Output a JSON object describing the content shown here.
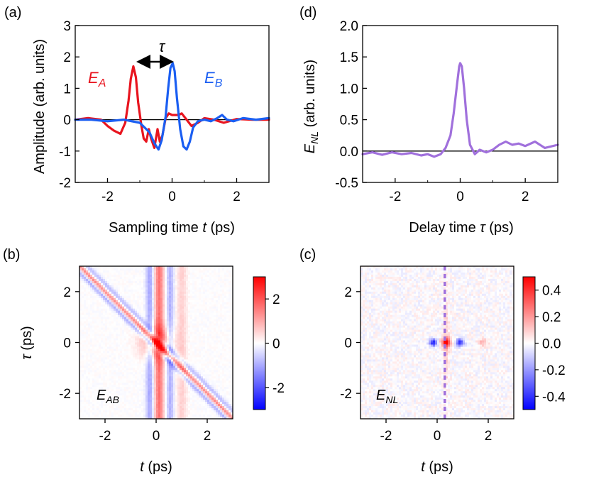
{
  "chart_data": [
    {
      "panel": "(a)",
      "type": "line",
      "xlabel_prefix": "Sampling time ",
      "xlabel_var": "t",
      "xlabel_suffix": " (ps)",
      "ylabel": "Amplitude (arb. units)",
      "xlim": [
        -3,
        3
      ],
      "ylim": [
        -2,
        3
      ],
      "xticks": [
        -2,
        0,
        2
      ],
      "yticks": [
        -2,
        -1,
        0,
        1,
        2,
        3
      ],
      "zero_line": true,
      "annotation": "τ",
      "series": [
        {
          "name": "E",
          "subscript": "A",
          "color": "#e8141e",
          "x": [
            -3.0,
            -2.6,
            -2.2,
            -2.0,
            -1.8,
            -1.6,
            -1.45,
            -1.35,
            -1.28,
            -1.2,
            -1.12,
            -1.05,
            -0.95,
            -0.88,
            -0.8,
            -0.72,
            -0.65,
            -0.55,
            -0.45,
            -0.38,
            -0.3,
            -0.2,
            -0.1,
            0.0,
            0.1,
            0.2,
            0.3,
            0.45,
            0.6,
            0.8,
            1.0,
            1.3,
            1.6,
            2.0,
            2.5,
            3.0
          ],
          "y": [
            0.0,
            0.05,
            0.0,
            -0.2,
            -0.35,
            -0.45,
            -0.1,
            0.6,
            1.3,
            1.7,
            1.35,
            0.55,
            -0.2,
            -0.6,
            -0.7,
            -0.3,
            -0.6,
            -0.9,
            -0.3,
            -0.7,
            -0.5,
            0.05,
            0.2,
            0.15,
            0.15,
            0.15,
            0.2,
            0.0,
            -0.2,
            -0.1,
            0.05,
            0.0,
            -0.1,
            0.02,
            0.0,
            0.0
          ]
        },
        {
          "name": "E",
          "subscript": "B",
          "color": "#1a5ef2",
          "x": [
            -3.0,
            -2.5,
            -2.0,
            -1.5,
            -1.0,
            -0.7,
            -0.55,
            -0.42,
            -0.32,
            -0.2,
            -0.12,
            -0.05,
            0.02,
            0.08,
            0.15,
            0.25,
            0.35,
            0.45,
            0.55,
            0.65,
            0.8,
            1.0,
            1.2,
            1.4,
            1.55,
            1.7,
            1.9,
            2.2,
            2.6,
            3.0
          ],
          "y": [
            0.0,
            0.0,
            -0.05,
            0.0,
            -0.1,
            -0.4,
            -0.75,
            -0.95,
            -0.65,
            0.1,
            1.0,
            1.65,
            1.8,
            1.55,
            0.7,
            -0.3,
            -0.85,
            -0.95,
            -0.7,
            -0.25,
            -0.05,
            0.0,
            -0.05,
            0.05,
            0.15,
            0.0,
            -0.05,
            0.05,
            0.0,
            0.05
          ]
        }
      ]
    },
    {
      "panel": "(d)",
      "type": "line",
      "xlabel_prefix": "Delay time ",
      "xlabel_var": "τ",
      "xlabel_suffix": " (ps)",
      "ylabel_var": "E",
      "ylabel_sub": "NL",
      "ylabel_suffix": " (arb. units)",
      "xlim": [
        -3,
        3
      ],
      "ylim": [
        -0.5,
        2.0
      ],
      "xticks": [
        -2,
        0,
        2
      ],
      "yticks": [
        -0.5,
        0.0,
        0.5,
        1.0,
        1.5,
        2.0
      ],
      "ytick_labels": [
        "-0.5",
        "0.0",
        "0.5",
        "1.0",
        "1.5",
        "2.0"
      ],
      "zero_line": true,
      "series": [
        {
          "color": "#a070dc",
          "x": [
            -3.0,
            -2.7,
            -2.4,
            -2.1,
            -1.8,
            -1.5,
            -1.2,
            -1.0,
            -0.8,
            -0.6,
            -0.45,
            -0.3,
            -0.2,
            -0.1,
            -0.03,
            0.0,
            0.05,
            0.12,
            0.2,
            0.3,
            0.45,
            0.6,
            0.8,
            1.0,
            1.2,
            1.4,
            1.6,
            1.8,
            2.0,
            2.3,
            2.6,
            3.0
          ],
          "y": [
            -0.05,
            -0.02,
            -0.06,
            -0.02,
            -0.05,
            -0.03,
            -0.07,
            -0.05,
            -0.09,
            -0.05,
            0.05,
            0.25,
            0.6,
            1.05,
            1.35,
            1.4,
            1.35,
            1.0,
            0.5,
            0.1,
            -0.05,
            0.02,
            -0.02,
            0.02,
            0.1,
            0.15,
            0.1,
            0.12,
            0.08,
            0.15,
            0.05,
            0.1
          ]
        }
      ]
    },
    {
      "panel": "(b)",
      "type": "heatmap",
      "xlabel_var": "t",
      "xlabel_suffix": " (ps)",
      "ylabel_var": "τ",
      "ylabel_suffix": " (ps)",
      "xlim": [
        -3,
        3
      ],
      "ylim": [
        -3,
        3
      ],
      "xticks": [
        -2,
        0,
        2
      ],
      "yticks": [
        -2,
        0,
        2
      ],
      "label_var": "E",
      "label_sub": "AB",
      "colorbar": {
        "range": [
          -3,
          3
        ],
        "ticks": [
          2,
          0,
          -2
        ],
        "tick_labels": [
          "2",
          "0",
          "-2"
        ]
      },
      "colormap": [
        "#0000ff",
        "#ffffff",
        "#ff0000"
      ]
    },
    {
      "panel": "(c)",
      "type": "heatmap",
      "xlabel_var": "t",
      "xlabel_suffix": " (ps)",
      "xlim": [
        -3,
        3
      ],
      "ylim": [
        -3,
        3
      ],
      "xticks": [
        -2,
        0,
        2
      ],
      "yticks": [
        -2,
        0,
        2
      ],
      "label_var": "E",
      "label_sub": "NL",
      "dashed_line_t": 0.3,
      "dashed_line_color": "#a070dc",
      "colorbar": {
        "range": [
          -0.5,
          0.5
        ],
        "ticks": [
          0.4,
          0.2,
          0.0,
          -0.2,
          -0.4
        ],
        "tick_labels": [
          "0.4",
          "0.2",
          "0.0",
          "-0.2",
          "-0.4"
        ]
      },
      "colormap": [
        "#0000ff",
        "#ffffff",
        "#ff0000"
      ]
    }
  ]
}
